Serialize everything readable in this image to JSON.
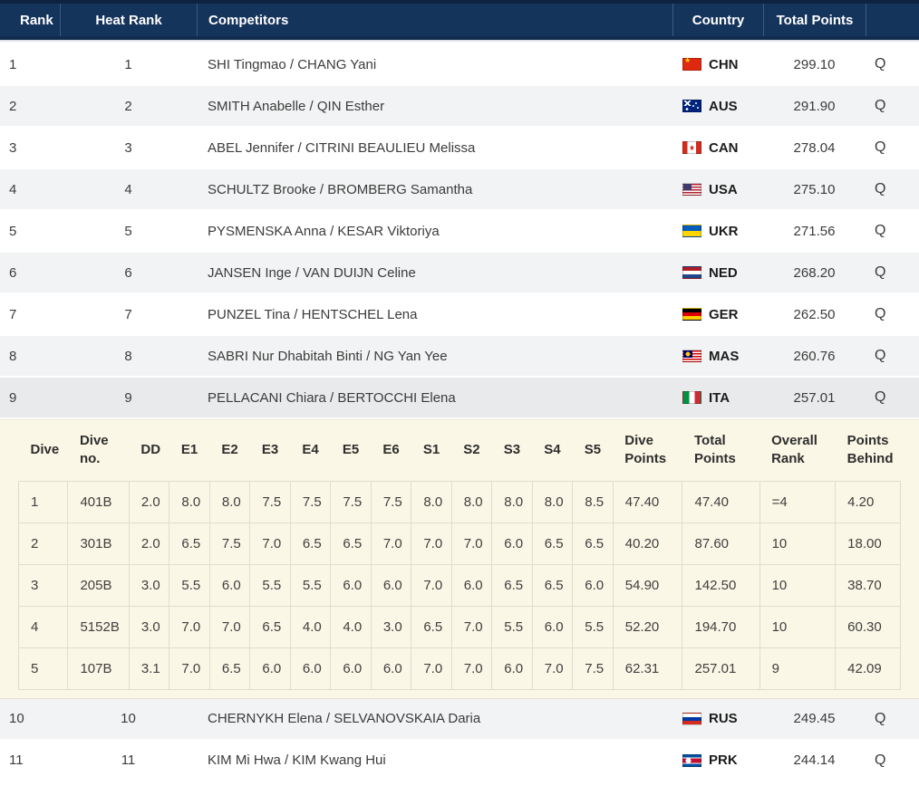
{
  "colors": {
    "header_bg": "#15345c",
    "header_text": "#ffffff",
    "row_alt_bg": "#f2f3f4",
    "row_highlight_bg": "#e9eaec",
    "detail_panel_bg": "#fbf7e6"
  },
  "main": {
    "headers": {
      "rank": "Rank",
      "heat_rank": "Heat Rank",
      "competitors": "Competitors",
      "country": "Country",
      "total_points": "Total Points",
      "qualified": ""
    },
    "rows_top": [
      {
        "rank": "1",
        "heat_rank": "1",
        "competitors": "SHI Tingmao / CHANG Yani",
        "country": "CHN",
        "flag": "chn",
        "total_points": "299.10",
        "q": "Q",
        "highlighted": false
      },
      {
        "rank": "2",
        "heat_rank": "2",
        "competitors": "SMITH Anabelle / QIN Esther",
        "country": "AUS",
        "flag": "aus",
        "total_points": "291.90",
        "q": "Q",
        "highlighted": false
      },
      {
        "rank": "3",
        "heat_rank": "3",
        "competitors": "ABEL Jennifer / CITRINI BEAULIEU Melissa",
        "country": "CAN",
        "flag": "can",
        "total_points": "278.04",
        "q": "Q",
        "highlighted": false
      },
      {
        "rank": "4",
        "heat_rank": "4",
        "competitors": "SCHULTZ Brooke / BROMBERG Samantha",
        "country": "USA",
        "flag": "usa",
        "total_points": "275.10",
        "q": "Q",
        "highlighted": false
      },
      {
        "rank": "5",
        "heat_rank": "5",
        "competitors": "PYSMENSKA Anna / KESAR Viktoriya",
        "country": "UKR",
        "flag": "ukr",
        "total_points": "271.56",
        "q": "Q",
        "highlighted": false
      },
      {
        "rank": "6",
        "heat_rank": "6",
        "competitors": "JANSEN Inge / VAN DUIJN Celine",
        "country": "NED",
        "flag": "ned",
        "total_points": "268.20",
        "q": "Q",
        "highlighted": false
      },
      {
        "rank": "7",
        "heat_rank": "7",
        "competitors": "PUNZEL Tina / HENTSCHEL Lena",
        "country": "GER",
        "flag": "ger",
        "total_points": "262.50",
        "q": "Q",
        "highlighted": false
      },
      {
        "rank": "8",
        "heat_rank": "8",
        "competitors": "SABRI Nur Dhabitah Binti / NG Yan Yee",
        "country": "MAS",
        "flag": "mas",
        "total_points": "260.76",
        "q": "Q",
        "highlighted": false
      },
      {
        "rank": "9",
        "heat_rank": "9",
        "competitors": "PELLACANI Chiara / BERTOCCHI Elena",
        "country": "ITA",
        "flag": "ita",
        "total_points": "257.01",
        "q": "Q",
        "highlighted": true
      }
    ],
    "rows_bottom": [
      {
        "rank": "10",
        "heat_rank": "10",
        "competitors": "CHERNYKH Elena / SELVANOVSKAIA Daria",
        "country": "RUS",
        "flag": "rus",
        "total_points": "249.45",
        "q": "Q",
        "highlighted": false
      },
      {
        "rank": "11",
        "heat_rank": "11",
        "competitors": "KIM Mi Hwa / KIM Kwang Hui",
        "country": "PRK",
        "flag": "prk",
        "total_points": "244.14",
        "q": "Q",
        "highlighted": false
      }
    ]
  },
  "detail": {
    "headers": [
      "Dive",
      "Dive no.",
      "DD",
      "E1",
      "E2",
      "E3",
      "E4",
      "E5",
      "E6",
      "S1",
      "S2",
      "S3",
      "S4",
      "S5",
      "Dive Points",
      "Total Points",
      "Overall Rank",
      "Points Behind"
    ],
    "rows": [
      {
        "dive": "1",
        "dive_no": "401B",
        "dd": "2.0",
        "scores": [
          "8.0",
          "8.0",
          "7.5",
          "7.5",
          "7.5",
          "7.5",
          "8.0",
          "8.0",
          "8.0",
          "8.0",
          "8.5"
        ],
        "dive_points": "47.40",
        "total_points": "47.40",
        "overall_rank": "=4",
        "points_behind": "4.20"
      },
      {
        "dive": "2",
        "dive_no": "301B",
        "dd": "2.0",
        "scores": [
          "6.5",
          "7.5",
          "7.0",
          "6.5",
          "6.5",
          "7.0",
          "7.0",
          "7.0",
          "6.0",
          "6.5",
          "6.5"
        ],
        "dive_points": "40.20",
        "total_points": "87.60",
        "overall_rank": "10",
        "points_behind": "18.00"
      },
      {
        "dive": "3",
        "dive_no": "205B",
        "dd": "3.0",
        "scores": [
          "5.5",
          "6.0",
          "5.5",
          "5.5",
          "6.0",
          "6.0",
          "7.0",
          "6.0",
          "6.5",
          "6.5",
          "6.0"
        ],
        "dive_points": "54.90",
        "total_points": "142.50",
        "overall_rank": "10",
        "points_behind": "38.70"
      },
      {
        "dive": "4",
        "dive_no": "5152B",
        "dd": "3.0",
        "scores": [
          "7.0",
          "7.0",
          "6.5",
          "4.0",
          "4.0",
          "3.0",
          "6.5",
          "7.0",
          "5.5",
          "6.0",
          "5.5"
        ],
        "dive_points": "52.20",
        "total_points": "194.70",
        "overall_rank": "10",
        "points_behind": "60.30"
      },
      {
        "dive": "5",
        "dive_no": "107B",
        "dd": "3.1",
        "scores": [
          "7.0",
          "6.5",
          "6.0",
          "6.0",
          "6.0",
          "6.0",
          "7.0",
          "7.0",
          "6.0",
          "7.0",
          "7.5"
        ],
        "dive_points": "62.31",
        "total_points": "257.01",
        "overall_rank": "9",
        "points_behind": "42.09"
      }
    ]
  }
}
